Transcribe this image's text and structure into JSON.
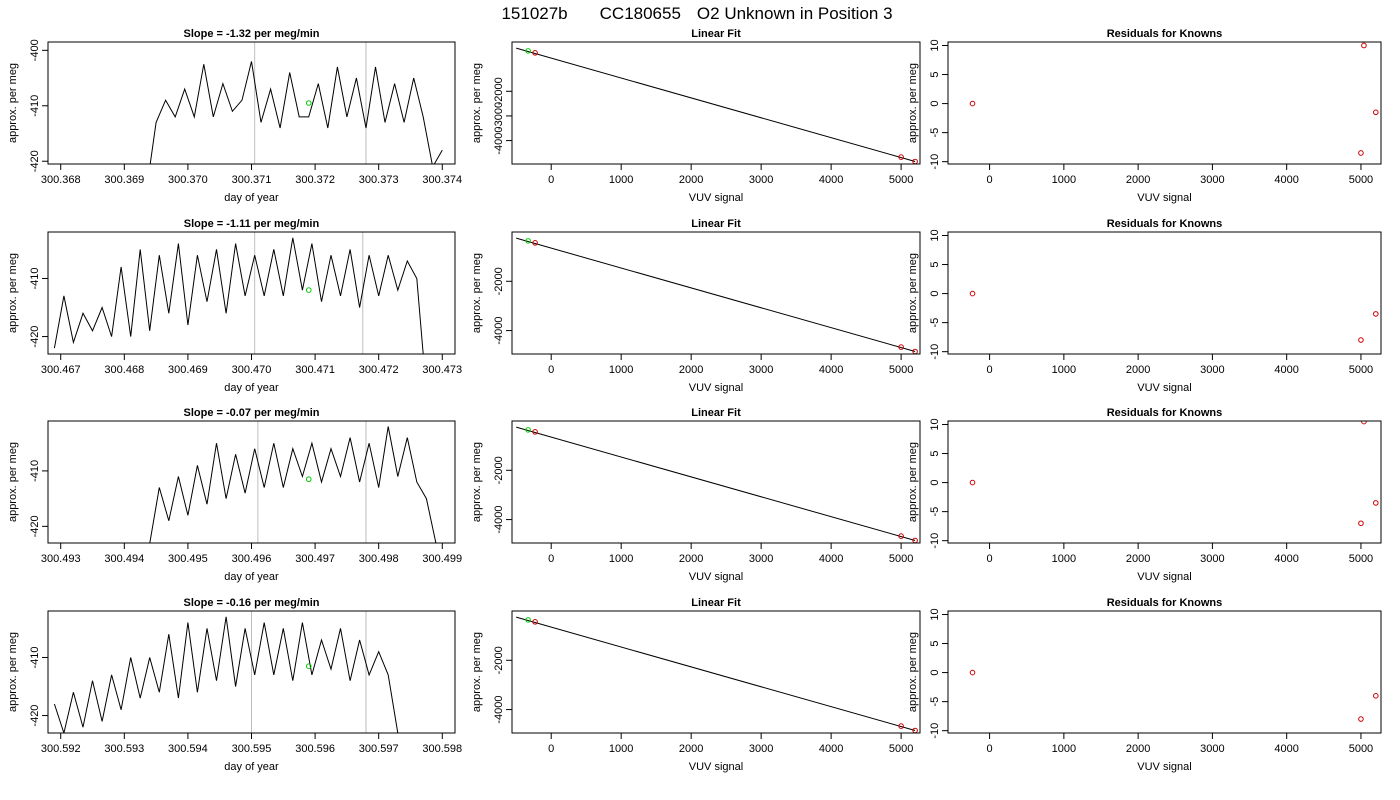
{
  "figure": {
    "title_parts": [
      "151027b",
      "CC180655",
      "O2 Unknown in Position  3"
    ]
  },
  "chart_data": [
    {
      "type": "line",
      "panel": "timeseries",
      "row": 1,
      "title": "Slope =  -1.32  per meg/min",
      "xlabel": "day of year",
      "ylabel": "approx. per meg",
      "xlim": [
        300.3678,
        300.3742
      ],
      "ylim": [
        -420.5,
        -398.5
      ],
      "xticks": [
        "300.368",
        "300.369",
        "300.370",
        "300.371",
        "300.372",
        "300.373",
        "300.374"
      ],
      "yticks": [
        -400,
        -410,
        -420
      ],
      "series": [
        {
          "x": [
            300.3694,
            300.3695,
            300.36965,
            300.3698,
            300.36995,
            300.3701,
            300.37025,
            300.3704,
            300.37055,
            300.3707,
            300.37085,
            300.371,
            300.37115,
            300.3713,
            300.37145,
            300.3716,
            300.37175,
            300.3719,
            300.37205,
            300.3722,
            300.37235,
            300.3725,
            300.37265,
            300.3728,
            300.37295,
            300.3731,
            300.37325,
            300.3734,
            300.37355,
            300.3737,
            300.37385,
            300.374
          ],
          "y": [
            -421,
            -413,
            -409,
            -412,
            -407,
            -412,
            -402.5,
            -412,
            -406,
            -411,
            -409,
            -402,
            -413,
            -407,
            -414,
            -404,
            -412,
            -412,
            -406,
            -414,
            -403,
            -412,
            -405,
            -414,
            -403,
            -413,
            -406,
            -413,
            -405,
            -412,
            -421,
            -418
          ]
        }
      ],
      "marker_green": {
        "x": 300.3719,
        "y": -409.5
      },
      "gray_lines": [
        300.37105,
        300.3728
      ]
    },
    {
      "type": "line",
      "panel": "timeseries",
      "row": 2,
      "title": "Slope =  -1.11  per meg/min",
      "xlabel": "day of year",
      "ylabel": "approx. per meg",
      "xlim": [
        300.4668,
        300.4732
      ],
      "ylim": [
        -423,
        -402
      ],
      "xticks": [
        "300.467",
        "300.468",
        "300.469",
        "300.470",
        "300.471",
        "300.472",
        "300.473"
      ],
      "yticks": [
        -410,
        -420
      ],
      "series": [
        {
          "x": [
            300.4669,
            300.46705,
            300.4672,
            300.46735,
            300.4675,
            300.46765,
            300.4678,
            300.46795,
            300.4681,
            300.46825,
            300.4684,
            300.46855,
            300.4687,
            300.46885,
            300.469,
            300.46915,
            300.4693,
            300.46945,
            300.4696,
            300.46975,
            300.4699,
            300.47005,
            300.4702,
            300.47035,
            300.4705,
            300.47065,
            300.4708,
            300.47095,
            300.4711,
            300.47125,
            300.4714,
            300.47155,
            300.4717,
            300.47185,
            300.472,
            300.47215,
            300.4723,
            300.47245,
            300.4726,
            300.4727
          ],
          "y": [
            -422,
            -413,
            -421,
            -416,
            -419,
            -415,
            -420,
            -408,
            -420,
            -405,
            -419,
            -406,
            -416,
            -404,
            -418,
            -406,
            -414,
            -405,
            -416,
            -404,
            -413,
            -406,
            -413,
            -405,
            -413,
            -403,
            -412,
            -404,
            -414,
            -406,
            -413,
            -405,
            -415,
            -406,
            -413,
            -406,
            -412,
            -407,
            -410,
            -423
          ]
        }
      ],
      "marker_green": {
        "x": 300.4709,
        "y": -412
      },
      "gray_lines": [
        300.47005,
        300.47175
      ]
    },
    {
      "type": "line",
      "panel": "timeseries",
      "row": 3,
      "title": "Slope =  -0.07  per meg/min",
      "xlabel": "day of year",
      "ylabel": "approx. per meg",
      "xlim": [
        300.4928,
        300.4992
      ],
      "ylim": [
        -423,
        -401
      ],
      "xticks": [
        "300.493",
        "300.494",
        "300.495",
        "300.496",
        "300.497",
        "300.498",
        "300.499"
      ],
      "yticks": [
        -410,
        -420
      ],
      "series": [
        {
          "x": [
            300.4944,
            300.49455,
            300.4947,
            300.49485,
            300.495,
            300.49515,
            300.4953,
            300.49545,
            300.4956,
            300.49575,
            300.4959,
            300.49605,
            300.4962,
            300.49635,
            300.4965,
            300.49665,
            300.4968,
            300.49695,
            300.4971,
            300.49725,
            300.4974,
            300.49755,
            300.4977,
            300.49785,
            300.498,
            300.49815,
            300.4983,
            300.49845,
            300.4986,
            300.49875,
            300.4989
          ],
          "y": [
            -423,
            -413,
            -419,
            -411,
            -418,
            -409,
            -416,
            -405,
            -415,
            -407,
            -414,
            -406,
            -413,
            -405,
            -413,
            -406,
            -411,
            -405,
            -412,
            -406,
            -411,
            -404,
            -412,
            -405,
            -413,
            -402,
            -411,
            -404,
            -412,
            -415,
            -423
          ]
        }
      ],
      "marker_green": {
        "x": 300.4969,
        "y": -411.5
      },
      "gray_lines": [
        300.4961,
        300.4978
      ]
    },
    {
      "type": "line",
      "panel": "timeseries",
      "row": 4,
      "title": "Slope =  -0.16  per meg/min",
      "xlabel": "day of year",
      "ylabel": "approx. per meg",
      "xlim": [
        300.5918,
        300.5982
      ],
      "ylim": [
        -423,
        -402
      ],
      "xticks": [
        "300.592",
        "300.593",
        "300.594",
        "300.595",
        "300.596",
        "300.597",
        "300.598"
      ],
      "yticks": [
        -410,
        -420
      ],
      "series": [
        {
          "x": [
            300.5919,
            300.59205,
            300.5922,
            300.59235,
            300.5925,
            300.59265,
            300.5928,
            300.59295,
            300.5931,
            300.59325,
            300.5934,
            300.59355,
            300.5937,
            300.59385,
            300.594,
            300.59415,
            300.5943,
            300.59445,
            300.5946,
            300.59475,
            300.5949,
            300.59505,
            300.5952,
            300.59535,
            300.5955,
            300.59565,
            300.5958,
            300.59595,
            300.5961,
            300.59625,
            300.5964,
            300.59655,
            300.5967,
            300.59685,
            300.597,
            300.59715,
            300.5973
          ],
          "y": [
            -418,
            -423,
            -416,
            -422,
            -414,
            -421,
            -413,
            -419,
            -410,
            -417,
            -410,
            -416,
            -406,
            -417,
            -404,
            -416,
            -405,
            -414,
            -403,
            -415,
            -405,
            -413,
            -404,
            -413,
            -405,
            -414,
            -404,
            -413,
            -407,
            -412,
            -405,
            -414,
            -407,
            -413,
            -409,
            -413,
            -423
          ]
        }
      ],
      "marker_green": {
        "x": 300.5959,
        "y": -411.5
      },
      "gray_lines": [
        300.595,
        300.5968
      ]
    },
    {
      "type": "scatter",
      "panel": "fit",
      "row": 1,
      "title": "Linear Fit",
      "xlabel": "VUV signal",
      "ylabel": "approx. per meg",
      "xlim": [
        -560,
        5270
      ],
      "ylim": [
        -4950,
        0
      ],
      "xticks": [
        0,
        1000,
        2000,
        3000,
        4000,
        5000
      ],
      "yticks": [
        -2000,
        -3000,
        -4000
      ],
      "knowns": [
        [
          -230,
          -440
        ],
        [
          5000,
          -4670
        ],
        [
          5200,
          -4850
        ]
      ],
      "unknown": [
        [
          -330,
          -360
        ]
      ],
      "line": [
        [
          -500,
          -250
        ],
        [
          5200,
          -4850
        ]
      ]
    },
    {
      "type": "scatter",
      "panel": "fit",
      "row": 2,
      "title": "Linear Fit",
      "xlabel": "VUV signal",
      "ylabel": "approx. per meg",
      "xlim": [
        -560,
        5270
      ],
      "ylim": [
        -4950,
        0
      ],
      "xticks": [
        0,
        1000,
        2000,
        3000,
        4000,
        5000
      ],
      "yticks": [
        -2000,
        -4000
      ],
      "knowns": [
        [
          -230,
          -440
        ],
        [
          5000,
          -4670
        ],
        [
          5200,
          -4850
        ]
      ],
      "unknown": [
        [
          -330,
          -360
        ]
      ],
      "line": [
        [
          -500,
          -250
        ],
        [
          5200,
          -4850
        ]
      ]
    },
    {
      "type": "scatter",
      "panel": "fit",
      "row": 3,
      "title": "Linear Fit",
      "xlabel": "VUV signal",
      "ylabel": "approx. per meg",
      "xlim": [
        -560,
        5270
      ],
      "ylim": [
        -4950,
        0
      ],
      "xticks": [
        0,
        1000,
        2000,
        3000,
        4000,
        5000
      ],
      "yticks": [
        -2000,
        -4000
      ],
      "knowns": [
        [
          -230,
          -440
        ],
        [
          5000,
          -4670
        ],
        [
          5200,
          -4850
        ]
      ],
      "unknown": [
        [
          -330,
          -360
        ]
      ],
      "line": [
        [
          -500,
          -250
        ],
        [
          5200,
          -4850
        ]
      ]
    },
    {
      "type": "scatter",
      "panel": "fit",
      "row": 4,
      "title": "Linear Fit",
      "xlabel": "VUV signal",
      "ylabel": "approx. per meg",
      "xlim": [
        -560,
        5270
      ],
      "ylim": [
        -4950,
        0
      ],
      "xticks": [
        0,
        1000,
        2000,
        3000,
        4000,
        5000
      ],
      "yticks": [
        -2000,
        -4000
      ],
      "knowns": [
        [
          -230,
          -440
        ],
        [
          5000,
          -4670
        ],
        [
          5200,
          -4850
        ]
      ],
      "unknown": [
        [
          -330,
          -360
        ]
      ],
      "line": [
        [
          -500,
          -250
        ],
        [
          5200,
          -4850
        ]
      ]
    },
    {
      "type": "scatter",
      "panel": "residuals",
      "row": 1,
      "title": "Residuals for Knowns",
      "xlabel": "VUV signal",
      "ylabel": "approx. per meg",
      "xlim": [
        -560,
        5270
      ],
      "ylim": [
        -10.4,
        10.6
      ],
      "xticks": [
        0,
        1000,
        2000,
        3000,
        4000,
        5000
      ],
      "yticks": [
        10,
        5,
        0,
        -5,
        -10
      ],
      "points": [
        [
          -230,
          0
        ],
        [
          5040,
          10
        ],
        [
          5200,
          -1.5
        ],
        [
          5000,
          -8.5
        ]
      ]
    },
    {
      "type": "scatter",
      "panel": "residuals",
      "row": 2,
      "title": "Residuals for Knowns",
      "xlabel": "VUV signal",
      "ylabel": "approx. per meg",
      "xlim": [
        -560,
        5270
      ],
      "ylim": [
        -10.4,
        10.6
      ],
      "xticks": [
        0,
        1000,
        2000,
        3000,
        4000,
        5000
      ],
      "yticks": [
        10,
        5,
        0,
        -5,
        -10
      ],
      "points": [
        [
          -230,
          0
        ],
        [
          5200,
          -3.5
        ],
        [
          5000,
          -8
        ]
      ]
    },
    {
      "type": "scatter",
      "panel": "residuals",
      "row": 3,
      "title": "Residuals for Knowns",
      "xlabel": "VUV signal",
      "ylabel": "approx. per meg",
      "xlim": [
        -560,
        5270
      ],
      "ylim": [
        -10.4,
        10.6
      ],
      "xticks": [
        0,
        1000,
        2000,
        3000,
        4000,
        5000
      ],
      "yticks": [
        10,
        5,
        0,
        -5,
        -10
      ],
      "points": [
        [
          -230,
          0
        ],
        [
          5040,
          10.5
        ],
        [
          5200,
          -3.5
        ],
        [
          5000,
          -7
        ]
      ]
    },
    {
      "type": "scatter",
      "panel": "residuals",
      "row": 4,
      "title": "Residuals for Knowns",
      "xlabel": "VUV signal",
      "ylabel": "approx. per meg",
      "xlim": [
        -560,
        5270
      ],
      "ylim": [
        -10.4,
        10.6
      ],
      "xticks": [
        0,
        1000,
        2000,
        3000,
        4000,
        5000
      ],
      "yticks": [
        10,
        5,
        0,
        -5,
        -10
      ],
      "points": [
        [
          -230,
          0
        ],
        [
          5200,
          -4
        ],
        [
          5000,
          -8
        ]
      ]
    }
  ],
  "colors": {
    "axis": "#000000",
    "line": "#000000",
    "unknown": "#00cc00",
    "known": "#cc0000",
    "vline": "#bebebe"
  }
}
